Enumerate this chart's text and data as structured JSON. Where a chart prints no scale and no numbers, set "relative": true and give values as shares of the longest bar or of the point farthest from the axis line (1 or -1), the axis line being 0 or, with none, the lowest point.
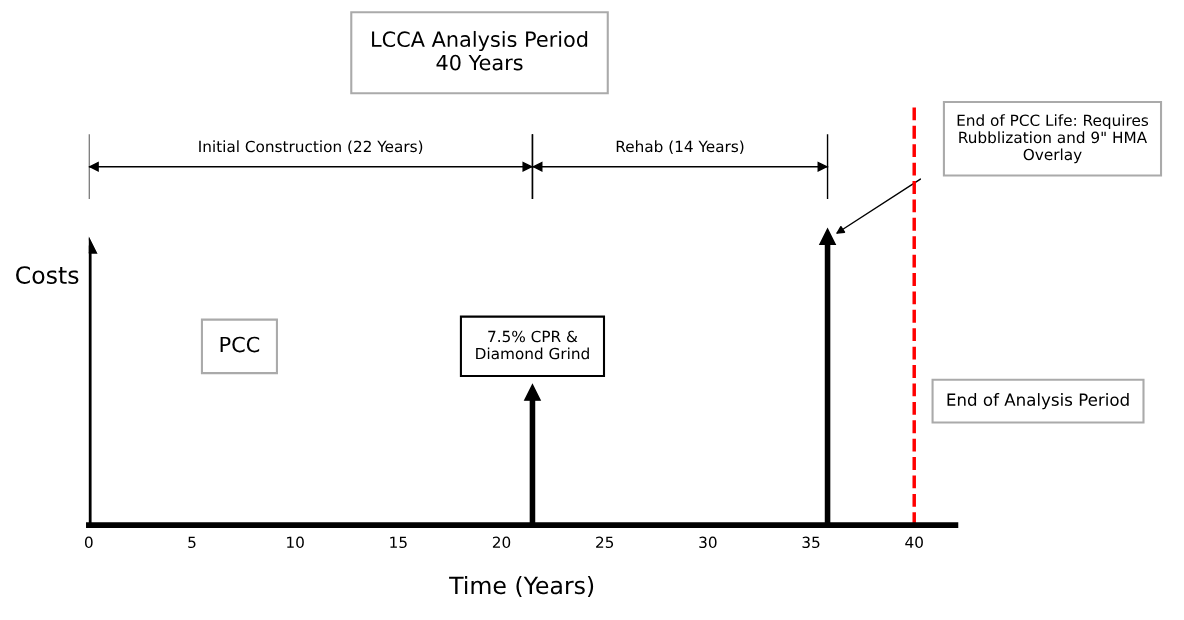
{
  "chart_data": {
    "type": "lollipop",
    "relative": true,
    "title": "LCCA Analysis Period\n40 Years",
    "xlabel": "Time (Years)",
    "ylabel": "Costs",
    "x": [
      0,
      21.5,
      35.8
    ],
    "values": [
      0.97,
      0.46,
      1
    ],
    "color": "#000000",
    "marker": "triangle",
    "xlim": [
      0,
      42
    ],
    "xticks": [
      0,
      5,
      10,
      15,
      20,
      25,
      30,
      35,
      40
    ],
    "grid": false,
    "ref_lines": [
      {
        "axis": "x",
        "value": 40,
        "label": "End of Analysis Period",
        "color": "#ff0000",
        "line_style": "dashed"
      }
    ],
    "annotations": [
      "Initial Construction (22 Years)",
      "Rehab (14 Years)",
      "PCC",
      "7.5% CPR &\nDiamond Grind",
      "End of PCC Life: Requires\nRubblization and 9\" HMA\nOverlay"
    ]
  }
}
